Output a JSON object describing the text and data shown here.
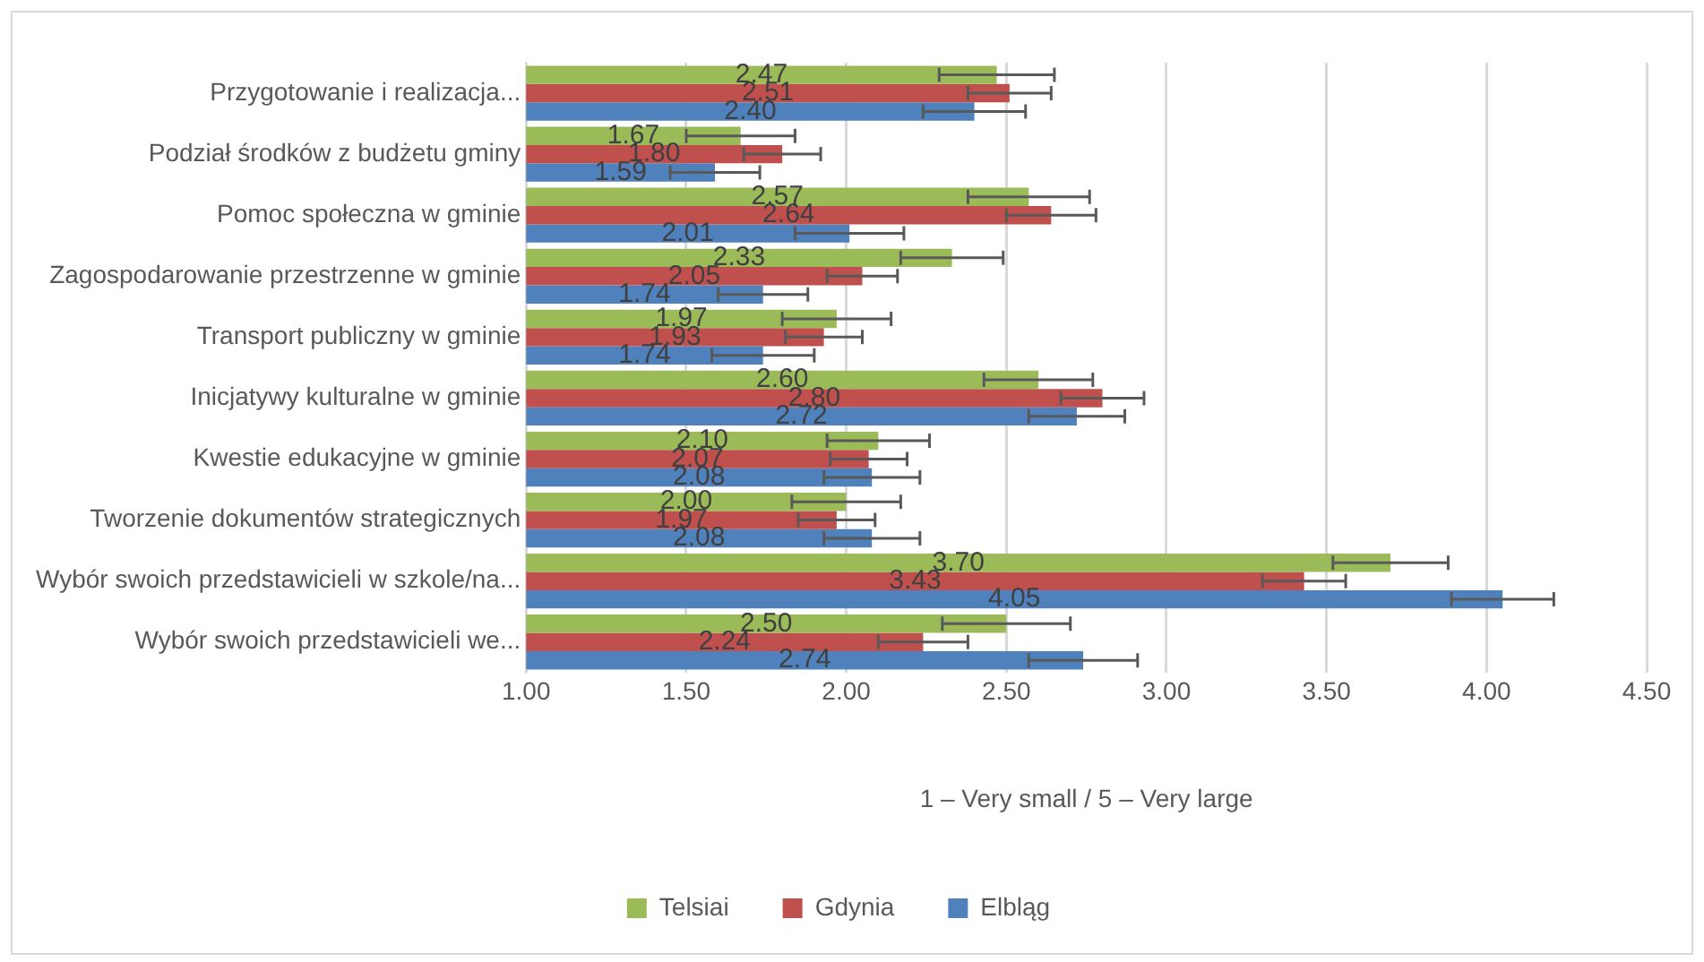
{
  "chart_data": {
    "type": "bar",
    "orientation": "horizontal",
    "xlabel": "1 – Very small / 5 – Very large",
    "categories": [
      "Przygotowanie i realizacja...",
      "Podział środków z budżetu gminy",
      "Pomoc społeczna w gminie",
      "Zagospodarowanie przestrzenne w gminie",
      "Transport publiczny w gminie",
      "Inicjatywy kulturalne w gminie",
      "Kwestie edukacyjne w gminie",
      "Tworzenie dokumentów strategicznych",
      "Wybór swoich przedstawicieli w szkole/na...",
      "Wybór swoich przedstawicieli we..."
    ],
    "series": [
      {
        "name": "Telsiai",
        "color": "#9bbb59",
        "values": [
          2.47,
          1.67,
          2.57,
          2.33,
          1.97,
          2.6,
          2.1,
          2.0,
          3.7,
          2.5
        ],
        "value_labels": [
          "2.47",
          "1.67",
          "2.57",
          "2.33",
          "1.97",
          "2.60",
          "2.10",
          "2.00",
          "3.70",
          "2.50"
        ],
        "errors": [
          0.18,
          0.17,
          0.19,
          0.16,
          0.17,
          0.17,
          0.16,
          0.17,
          0.18,
          0.2
        ]
      },
      {
        "name": "Gdynia",
        "color": "#c0504d",
        "values": [
          2.51,
          1.8,
          2.64,
          2.05,
          1.93,
          2.8,
          2.07,
          1.97,
          3.43,
          2.24
        ],
        "value_labels": [
          "2.51",
          "1.80",
          "2.64",
          "2.05",
          "1.93",
          "2.80",
          "2.07",
          "1.97",
          "3.43",
          "2.24"
        ],
        "errors": [
          0.13,
          0.12,
          0.14,
          0.11,
          0.12,
          0.13,
          0.12,
          0.12,
          0.13,
          0.14
        ]
      },
      {
        "name": "Elbląg",
        "color": "#4f81bd",
        "values": [
          2.4,
          1.59,
          2.01,
          1.74,
          1.74,
          2.72,
          2.08,
          2.08,
          4.05,
          2.74
        ],
        "value_labels": [
          "2.40",
          "1.59",
          "2.01",
          "1.74",
          "1.74",
          "2.72",
          "2.08",
          "2.08",
          "4.05",
          "2.74"
        ],
        "errors": [
          0.16,
          0.14,
          0.17,
          0.14,
          0.16,
          0.15,
          0.15,
          0.15,
          0.16,
          0.17
        ]
      }
    ],
    "xlim": [
      1,
      4.5
    ],
    "xticks": [
      {
        "value": 1,
        "label": "1.00"
      },
      {
        "value": 1.5,
        "label": "1.50"
      },
      {
        "value": 2,
        "label": "2.00"
      },
      {
        "value": 2.5,
        "label": "2.50"
      },
      {
        "value": 3,
        "label": "3.00"
      },
      {
        "value": 3.5,
        "label": "3.50"
      },
      {
        "value": 4,
        "label": "4.00"
      },
      {
        "value": 4.5,
        "label": "4.50"
      }
    ],
    "grid": "x",
    "legend": "bottom"
  }
}
